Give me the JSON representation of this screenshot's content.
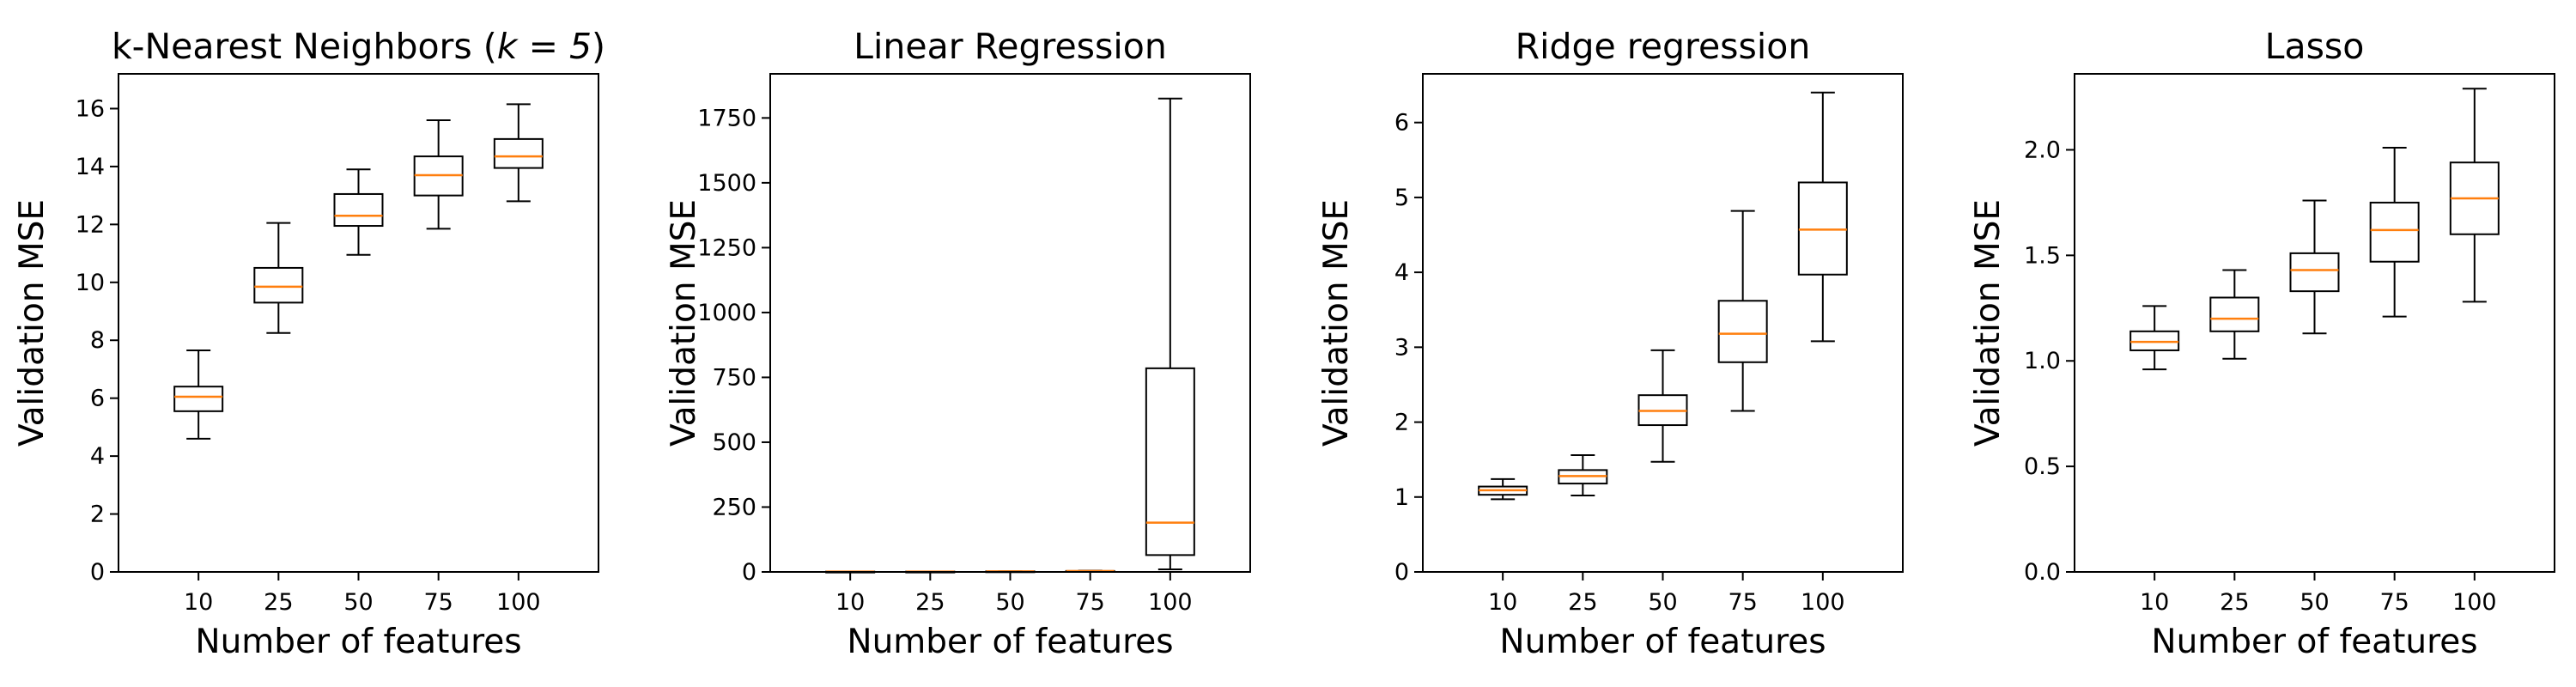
{
  "chart_data": [
    {
      "type": "box",
      "title": "k-Nearest Neighbors (",
      "title_math": "k = 5",
      "title_close": ")",
      "xlabel": "Number of features",
      "ylabel": "Validation MSE",
      "categories": [
        "10",
        "25",
        "50",
        "75",
        "100"
      ],
      "ylim": [
        0,
        17.2
      ],
      "yticks": [
        0,
        2,
        4,
        6,
        8,
        10,
        12,
        14,
        16
      ],
      "ytick_labels": [
        "0",
        "2",
        "4",
        "6",
        "8",
        "10",
        "12",
        "14",
        "16"
      ],
      "boxes": [
        {
          "whislo": 4.6,
          "q1": 5.55,
          "med": 6.05,
          "q3": 6.4,
          "whishi": 7.65
        },
        {
          "whislo": 8.25,
          "q1": 9.3,
          "med": 9.85,
          "q3": 10.5,
          "whishi": 12.05
        },
        {
          "whislo": 10.95,
          "q1": 11.95,
          "med": 12.3,
          "q3": 13.05,
          "whishi": 13.9
        },
        {
          "whislo": 11.85,
          "q1": 13.0,
          "med": 13.7,
          "q3": 14.35,
          "whishi": 15.6
        },
        {
          "whislo": 12.8,
          "q1": 13.95,
          "med": 14.35,
          "q3": 14.95,
          "whishi": 16.15
        }
      ]
    },
    {
      "type": "box",
      "title": "Linear Regression",
      "xlabel": "Number of features",
      "ylabel": "Validation MSE",
      "categories": [
        "10",
        "25",
        "50",
        "75",
        "100"
      ],
      "ylim": [
        0,
        1920
      ],
      "yticks": [
        0,
        250,
        500,
        750,
        1000,
        1250,
        1500,
        1750
      ],
      "ytick_labels": [
        "0",
        "250",
        "500",
        "750",
        "1000",
        "1250",
        "1500",
        "1750"
      ],
      "boxes": [
        {
          "whislo": 1,
          "q1": 1.1,
          "med": 1.15,
          "q3": 1.2,
          "whishi": 1.3
        },
        {
          "whislo": 1,
          "q1": 1.2,
          "med": 1.25,
          "q3": 1.3,
          "whishi": 1.6
        },
        {
          "whislo": 1.4,
          "q1": 1.9,
          "med": 2.1,
          "q3": 2.3,
          "whishi": 3.0
        },
        {
          "whislo": 2,
          "q1": 2.8,
          "med": 3.2,
          "q3": 3.6,
          "whishi": 5
        },
        {
          "whislo": 10,
          "q1": 65,
          "med": 190,
          "q3": 785,
          "whishi": 1825
        }
      ]
    },
    {
      "type": "box",
      "title": "Ridge regression",
      "xlabel": "Number of features",
      "ylabel": "Validation MSE",
      "categories": [
        "10",
        "25",
        "50",
        "75",
        "100"
      ],
      "ylim": [
        0,
        6.65
      ],
      "yticks": [
        0,
        1,
        2,
        3,
        4,
        5,
        6
      ],
      "ytick_labels": [
        "0",
        "1",
        "2",
        "3",
        "4",
        "5",
        "6"
      ],
      "boxes": [
        {
          "whislo": 0.97,
          "q1": 1.03,
          "med": 1.09,
          "q3": 1.14,
          "whishi": 1.24
        },
        {
          "whislo": 1.02,
          "q1": 1.18,
          "med": 1.28,
          "q3": 1.36,
          "whishi": 1.56
        },
        {
          "whislo": 1.47,
          "q1": 1.96,
          "med": 2.15,
          "q3": 2.36,
          "whishi": 2.96
        },
        {
          "whislo": 2.15,
          "q1": 2.8,
          "med": 3.18,
          "q3": 3.62,
          "whishi": 4.82
        },
        {
          "whislo": 3.08,
          "q1": 3.97,
          "med": 4.57,
          "q3": 5.2,
          "whishi": 6.4
        }
      ]
    },
    {
      "type": "box",
      "title": "Lasso",
      "xlabel": "Number of features",
      "ylabel": "Validation MSE",
      "categories": [
        "10",
        "25",
        "50",
        "75",
        "100"
      ],
      "ylim": [
        0,
        2.36
      ],
      "yticks": [
        0,
        0.5,
        1.0,
        1.5,
        2.0
      ],
      "ytick_labels": [
        "0.0",
        "0.5",
        "1.0",
        "1.5",
        "2.0"
      ],
      "boxes": [
        {
          "whislo": 0.96,
          "q1": 1.05,
          "med": 1.09,
          "q3": 1.14,
          "whishi": 1.26
        },
        {
          "whislo": 1.01,
          "q1": 1.14,
          "med": 1.2,
          "q3": 1.3,
          "whishi": 1.43
        },
        {
          "whislo": 1.13,
          "q1": 1.33,
          "med": 1.43,
          "q3": 1.51,
          "whishi": 1.76
        },
        {
          "whislo": 1.21,
          "q1": 1.47,
          "med": 1.62,
          "q3": 1.75,
          "whishi": 2.01
        },
        {
          "whislo": 1.28,
          "q1": 1.6,
          "med": 1.77,
          "q3": 1.94,
          "whishi": 2.29
        }
      ]
    }
  ],
  "colors": {
    "median": "#ff7f0e",
    "box": "#000000",
    "axes": "#000000",
    "background": "#ffffff"
  }
}
